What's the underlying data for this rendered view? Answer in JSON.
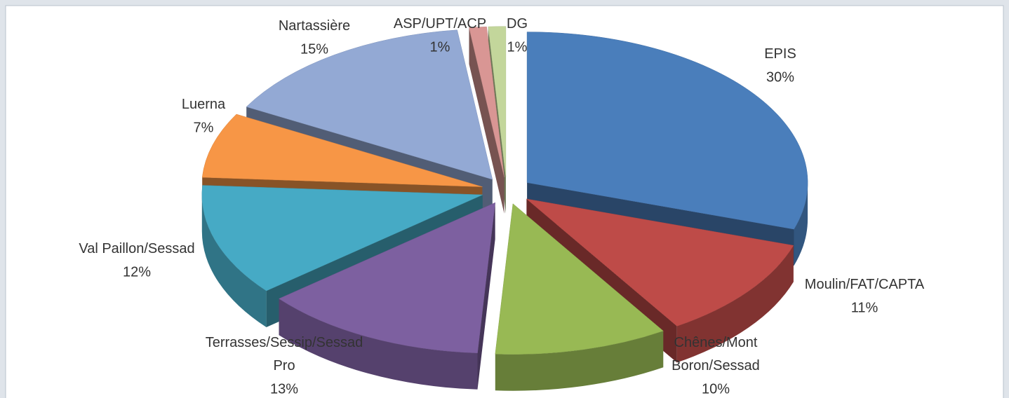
{
  "chart_data": {
    "type": "pie3d",
    "categories": [
      "EPIS",
      "Moulin/FAT/CAPTA",
      "Chênes/Mont Boron/Sessad",
      "Terrasses/Sessip/Sessad Pro",
      "Val Paillon/Sessad",
      "Luerna",
      "Nartassière",
      "ASP/UPT/ACP",
      "DG"
    ],
    "values": [
      30,
      11,
      10,
      13,
      12,
      7,
      15,
      1,
      1
    ],
    "value_labels": [
      "30%",
      "11%",
      "10%",
      "13%",
      "12%",
      "7%",
      "15%",
      "1%",
      "1%"
    ],
    "colors": [
      "#4a7ebb",
      "#be4b48",
      "#98b954",
      "#7d60a0",
      "#46aac5",
      "#f79646",
      "#93a9d4",
      "#d99694",
      "#c3d69b"
    ]
  }
}
